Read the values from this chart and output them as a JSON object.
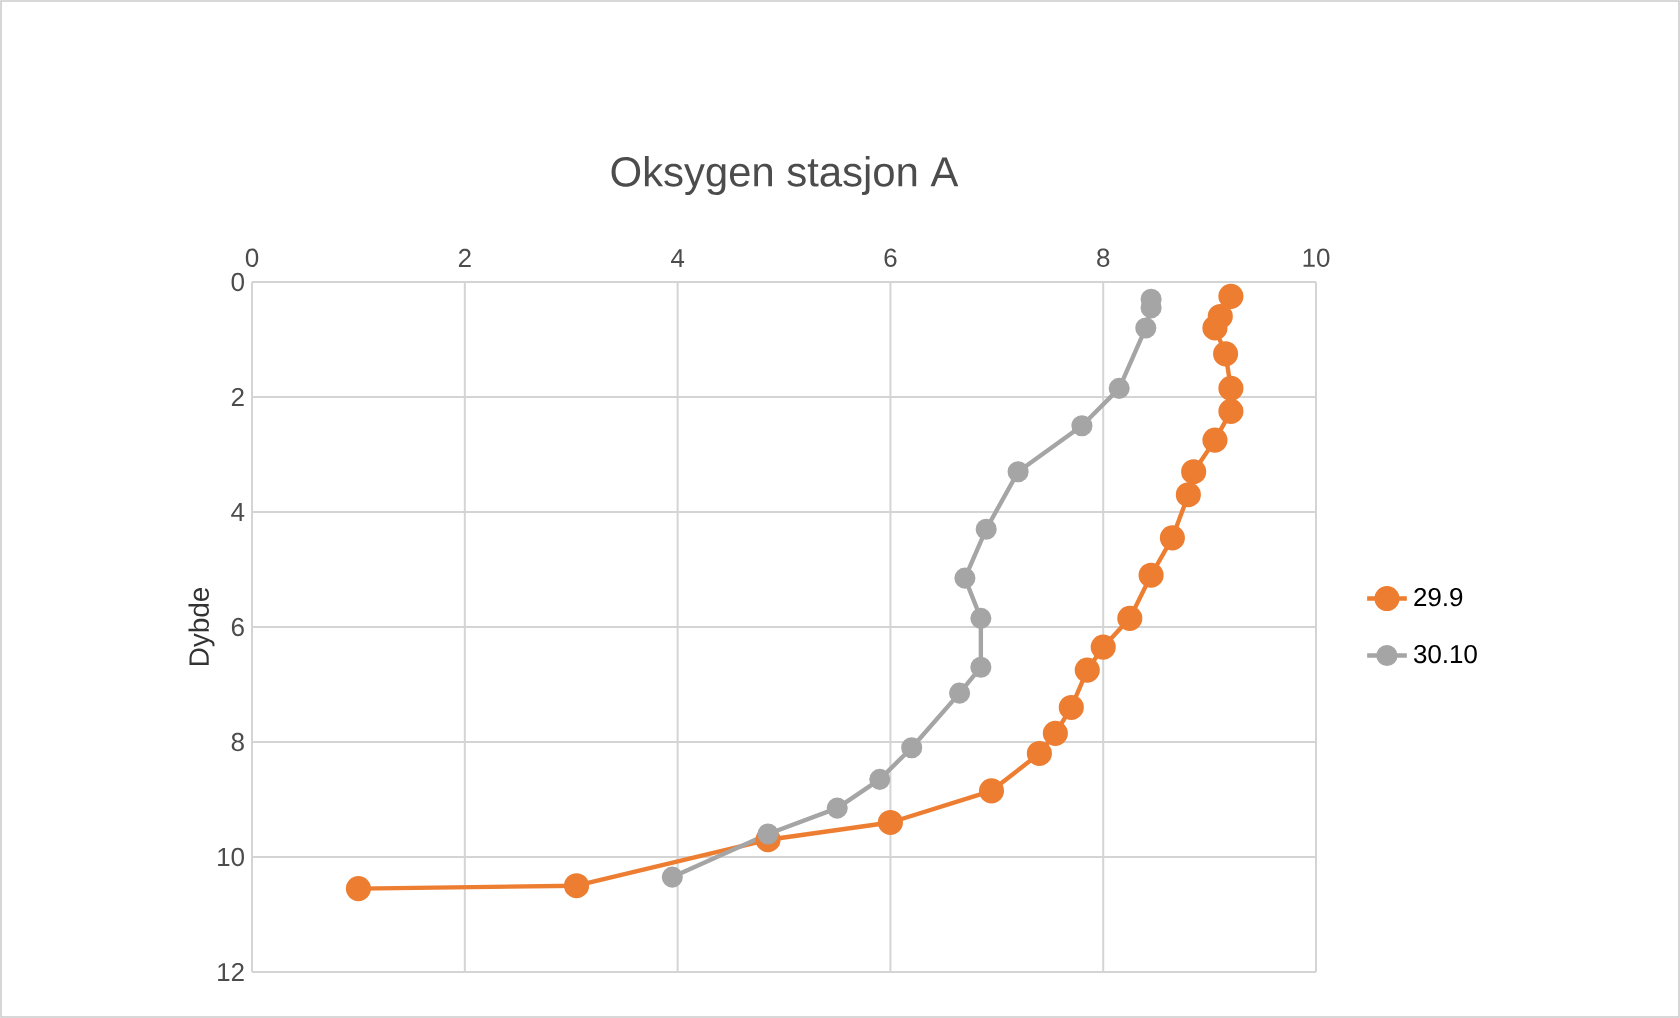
{
  "chart_data": {
    "type": "line",
    "title": "Oksygen stasjon A",
    "ylabel": "Dybde",
    "xlim": [
      0,
      10
    ],
    "xticks": [
      0,
      2,
      4,
      6,
      8,
      10
    ],
    "ylim": [
      12,
      0
    ],
    "yticks": [
      0,
      2,
      4,
      6,
      8,
      10,
      12
    ],
    "grid": true,
    "legend": "right",
    "marker": "circle",
    "line_style": "solid",
    "series": [
      {
        "name": "29.9",
        "color": "#ed7d31",
        "x": [
          9.2,
          9.1,
          9.05,
          9.15,
          9.2,
          9.2,
          9.05,
          8.85,
          8.8,
          8.65,
          8.45,
          8.25,
          8.0,
          7.85,
          7.7,
          7.55,
          7.4,
          6.95,
          6.0,
          4.85,
          3.05,
          1.0
        ],
        "values": [
          0.25,
          0.6,
          0.8,
          1.25,
          1.85,
          2.25,
          2.75,
          3.3,
          3.7,
          4.45,
          5.1,
          5.85,
          6.35,
          6.75,
          7.4,
          7.85,
          8.2,
          8.85,
          9.4,
          9.7,
          10.5,
          10.55
        ]
      },
      {
        "name": "30.10",
        "color": "#a5a5a5",
        "x": [
          8.45,
          8.45,
          8.4,
          8.15,
          7.8,
          7.2,
          6.9,
          6.7,
          6.85,
          6.85,
          6.65,
          6.2,
          5.9,
          5.5,
          4.85,
          3.95
        ],
        "values": [
          0.3,
          0.45,
          0.8,
          1.85,
          2.5,
          3.3,
          4.3,
          5.15,
          5.85,
          6.7,
          7.15,
          8.1,
          8.65,
          9.15,
          9.6,
          10.35
        ]
      }
    ]
  }
}
